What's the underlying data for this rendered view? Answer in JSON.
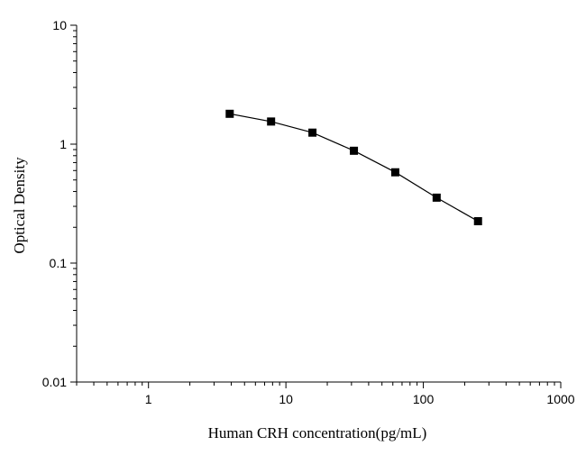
{
  "chart_data": {
    "type": "line",
    "title": "",
    "xlabel": "Human CRH concentration(pg/mL)",
    "ylabel": "Optical Density",
    "x_scale": "log",
    "y_scale": "log",
    "xlim": [
      0.3,
      1000
    ],
    "ylim": [
      0.01,
      10
    ],
    "x_ticks": [
      {
        "value": 1,
        "label": "1"
      },
      {
        "value": 10,
        "label": "10"
      },
      {
        "value": 100,
        "label": "100"
      },
      {
        "value": 1000,
        "label": "1000"
      }
    ],
    "y_ticks": [
      {
        "value": 0.01,
        "label": "0.01"
      },
      {
        "value": 0.1,
        "label": "0.1"
      },
      {
        "value": 1,
        "label": "1"
      },
      {
        "value": 10,
        "label": "10"
      }
    ],
    "grid": false,
    "legend": false,
    "marker": "square",
    "colors": {
      "line": "#000000",
      "marker": "#000000",
      "axis": "#000000"
    },
    "series": [
      {
        "x": [
          3.9,
          7.8,
          15.6,
          31.25,
          62.5,
          125,
          250
        ],
        "y": [
          1.8,
          1.55,
          1.25,
          0.88,
          0.58,
          0.355,
          0.225
        ]
      }
    ]
  }
}
